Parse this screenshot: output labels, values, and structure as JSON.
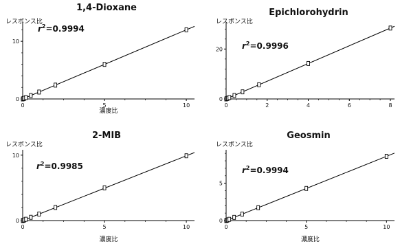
{
  "chart_data": [
    {
      "type": "scatter",
      "title": "1,4-Dioxane",
      "ylabel": "レスポンス比",
      "xlabel": "濃度比",
      "r2_prefix": "r",
      "r2_sup": "2",
      "r2_value": "=0.9994",
      "xlim": [
        0,
        10.5
      ],
      "ylim": [
        0,
        13
      ],
      "xticks": [
        0,
        5,
        10
      ],
      "yticks": [
        0,
        10
      ],
      "fit": {
        "slope": 1.2,
        "intercept": 0
      },
      "x": [
        0,
        0.05,
        0.1,
        0.2,
        0.5,
        1,
        2,
        5,
        10
      ],
      "y": [
        0,
        0.06,
        0.12,
        0.24,
        0.6,
        1.2,
        2.4,
        6.0,
        12.0
      ]
    },
    {
      "type": "scatter",
      "title": "Epichlorohydrin",
      "ylabel": "レスポンス比",
      "xlabel": "",
      "r2_prefix": "r",
      "r2_sup": "2",
      "r2_value": "=0.9996",
      "xlim": [
        0,
        8.2
      ],
      "ylim": [
        0,
        30
      ],
      "xticks": [
        0,
        2,
        4,
        6,
        8
      ],
      "yticks": [
        0,
        20
      ],
      "fit": {
        "slope": 3.55,
        "intercept": 0
      },
      "x": [
        0,
        0.04,
        0.08,
        0.16,
        0.4,
        0.8,
        1.6,
        4,
        8
      ],
      "y": [
        0,
        0.14,
        0.28,
        0.57,
        1.42,
        2.84,
        5.68,
        14.2,
        28.4
      ]
    },
    {
      "type": "scatter",
      "title": "2-MIB",
      "ylabel": "レスポンス比",
      "xlabel": "濃度比",
      "r2_prefix": "r",
      "r2_sup": "2",
      "r2_value": "=0.9985",
      "xlim": [
        0,
        10.5
      ],
      "ylim": [
        0,
        10.5
      ],
      "xticks": [
        0,
        5,
        10
      ],
      "yticks": [
        0,
        10
      ],
      "fit": {
        "slope": 0.99,
        "intercept": 0
      },
      "x": [
        0,
        0.05,
        0.1,
        0.2,
        0.5,
        1,
        2,
        5,
        10
      ],
      "y": [
        0,
        0.05,
        0.1,
        0.2,
        0.5,
        1.0,
        2.0,
        5.0,
        9.9
      ]
    },
    {
      "type": "scatter",
      "title": "Geosmin",
      "ylabel": "レスポンス比",
      "xlabel": "濃度比",
      "r2_prefix": "r",
      "r2_sup": "2",
      "r2_value": "=0.9994",
      "xlim": [
        0,
        10.5
      ],
      "ylim": [
        0,
        9.2
      ],
      "xticks": [
        0,
        5,
        10
      ],
      "yticks": [
        0,
        5
      ],
      "fit": {
        "slope": 0.86,
        "intercept": 0
      },
      "x": [
        0,
        0.05,
        0.1,
        0.2,
        0.5,
        1,
        2,
        5,
        10
      ],
      "y": [
        0,
        0.04,
        0.09,
        0.17,
        0.43,
        0.86,
        1.72,
        4.3,
        8.6
      ]
    }
  ]
}
